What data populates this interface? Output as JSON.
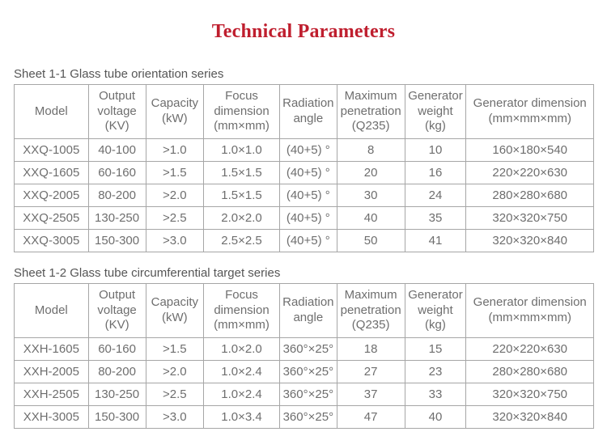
{
  "page": {
    "title": "Technical Parameters",
    "title_color": "#bf1e2e"
  },
  "tables": [
    {
      "caption": "Sheet 1-1 Glass tube orientation series",
      "headers": [
        "Model",
        "Output\nvoltage\n(KV)",
        "Capacity\n(kW)",
        "Focus\ndimension\n(mm×mm)",
        "Radiation\nangle",
        "Maximum\npenetration\n(Q235)",
        "Generator\nweight\n(kg)",
        "Generator dimension\n(mm×mm×mm)"
      ],
      "rows": [
        [
          "XXQ-1005",
          "40-100",
          ">1.0",
          "1.0×1.0",
          "(40+5) °",
          "8",
          "10",
          "160×180×540"
        ],
        [
          "XXQ-1605",
          "60-160",
          ">1.5",
          "1.5×1.5",
          "(40+5) °",
          "20",
          "16",
          "220×220×630"
        ],
        [
          "XXQ-2005",
          "80-200",
          ">2.0",
          "1.5×1.5",
          "(40+5) °",
          "30",
          "24",
          "280×280×680"
        ],
        [
          "XXQ-2505",
          "130-250",
          ">2.5",
          "2.0×2.0",
          "(40+5) °",
          "40",
          "35",
          "320×320×750"
        ],
        [
          "XXQ-3005",
          "150-300",
          ">3.0",
          "2.5×2.5",
          "(40+5) °",
          "50",
          "41",
          "320×320×840"
        ]
      ]
    },
    {
      "caption": "Sheet 1-2 Glass tube circumferential target series",
      "headers": [
        "Model",
        "Output\nvoltage\n(KV)",
        "Capacity\n(kW)",
        "Focus\ndimension\n(mm×mm)",
        "Radiation\nangle",
        "Maximum\npenetration\n(Q235)",
        "Generator\nweight\n(kg)",
        "Generator dimension\n(mm×mm×mm)"
      ],
      "rows": [
        [
          "XXH-1605",
          "60-160",
          ">1.5",
          "1.0×2.0",
          "360°×25°",
          "18",
          "15",
          "220×220×630"
        ],
        [
          "XXH-2005",
          "80-200",
          ">2.0",
          "1.0×2.4",
          "360°×25°",
          "27",
          "23",
          "280×280×680"
        ],
        [
          "XXH-2505",
          "130-250",
          ">2.5",
          "1.0×2.4",
          "360°×25°",
          "37",
          "33",
          "320×320×750"
        ],
        [
          "XXH-3005",
          "150-300",
          ">3.0",
          "1.0×3.4",
          "360°×25°",
          "47",
          "40",
          "320×320×840"
        ]
      ]
    }
  ]
}
